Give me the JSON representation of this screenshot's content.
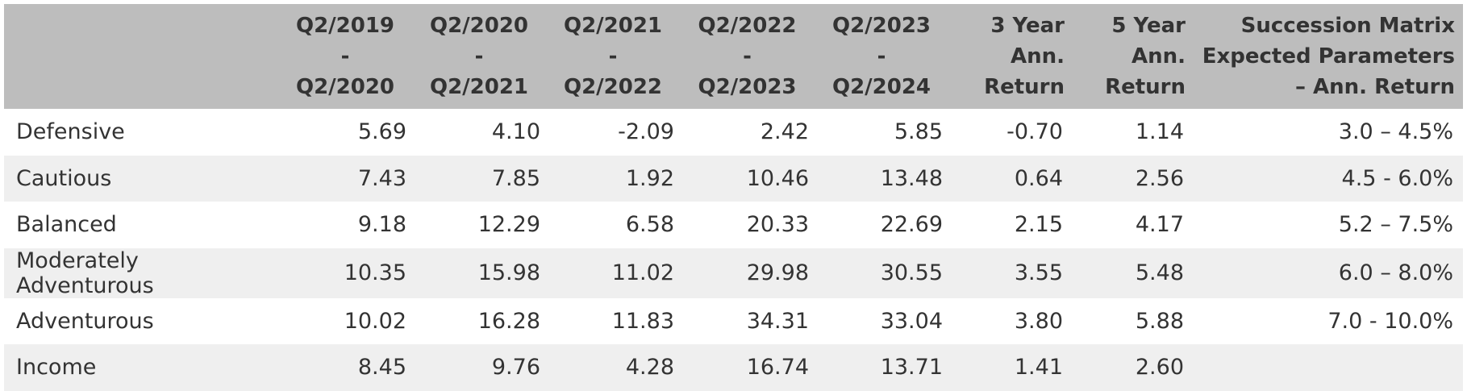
{
  "table": {
    "header": [
      [],
      [
        "Q2/2019",
        "-",
        "Q2/2020"
      ],
      [
        "Q2/2020",
        "-",
        "Q2/2021"
      ],
      [
        "Q2/2021",
        "-",
        "Q2/2022"
      ],
      [
        "Q2/2022",
        "-",
        "Q2/2023"
      ],
      [
        "Q2/2023",
        "-",
        "Q2/2024"
      ],
      [
        "3 Year",
        "Ann.",
        "Return"
      ],
      [
        "5 Year",
        "Ann.",
        "Return"
      ],
      [
        "Succession Matrix",
        "Expected Parameters",
        "– Ann. Return"
      ]
    ],
    "rows": [
      [
        "Defensive",
        "5.69",
        "4.10",
        "-2.09",
        "2.42",
        "5.85",
        "-0.70",
        "1.14",
        "3.0 – 4.5%"
      ],
      [
        "Cautious",
        "7.43",
        "7.85",
        "1.92",
        "10.46",
        "13.48",
        "0.64",
        "2.56",
        "4.5 - 6.0%"
      ],
      [
        "Balanced",
        "9.18",
        "12.29",
        "6.58",
        "20.33",
        "22.69",
        "2.15",
        "4.17",
        "5.2 – 7.5%"
      ],
      [
        "Moderately Adventurous",
        "10.35",
        "15.98",
        "11.02",
        "29.98",
        "30.55",
        "3.55",
        "5.48",
        "6.0 – 8.0%"
      ],
      [
        "Adventurous",
        "10.02",
        "16.28",
        "11.83",
        "34.31",
        "33.04",
        "3.80",
        "5.88",
        "7.0 - 10.0%"
      ],
      [
        "Income",
        "8.45",
        "9.76",
        "4.28",
        "16.74",
        "13.71",
        "1.41",
        "2.60"
      ]
    ]
  }
}
